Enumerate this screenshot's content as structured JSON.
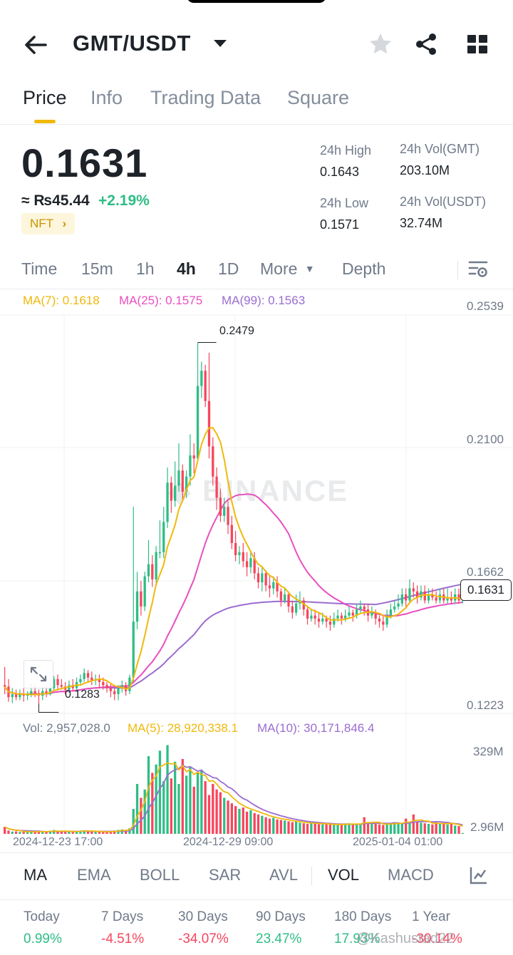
{
  "header": {
    "pair": "GMT/USDT",
    "icons": [
      "back-arrow-icon",
      "caret-down-icon",
      "star-icon",
      "share-icon",
      "grid-icon"
    ]
  },
  "tabs": [
    "Price",
    "Info",
    "Trading Data",
    "Square"
  ],
  "ticker": {
    "last_price": "0.1631",
    "fiat": "≈ ₨45.44",
    "change": "+2.19%",
    "tag": "NFT",
    "high_label": "24h High",
    "high_value": "0.1643",
    "low_label": "24h Low",
    "low_value": "0.1571",
    "vol_base_label": "24h Vol(GMT)",
    "vol_base_value": "203.10M",
    "vol_quote_label": "24h Vol(USDT)",
    "vol_quote_value": "32.74M"
  },
  "intervals": [
    "Time",
    "15m",
    "1h",
    "4h",
    "1D",
    "More",
    "Depth"
  ],
  "active_interval": "4h",
  "colors": {
    "up": "#2ebd85",
    "down": "#f6465d",
    "ma7": "#f0b90b",
    "ma25": "#e84fc1",
    "ma99": "#9b6cd1",
    "accent": "#f0b90b"
  },
  "chart_data": {
    "type": "candlestick",
    "ma_legend": {
      "ma7": "MA(7): 0.1618",
      "ma25": "MA(25): 0.1575",
      "ma99": "MA(99): 0.1563"
    },
    "y_ticks": [
      "0.2539",
      "0.2100",
      "0.1662",
      "0.1223"
    ],
    "ylim": [
      0.1223,
      0.2539
    ],
    "annotations": {
      "high": "0.2479",
      "low": "0.1283"
    },
    "current_price": "0.1631",
    "x_ticks": [
      "2024-12-23 17:00",
      "2024-12-29 09:00",
      "2025-01-04 01:00"
    ],
    "candles": [
      [
        0.1345,
        0.134,
        0.1405,
        0.1315
      ],
      [
        0.134,
        0.1305,
        0.1365,
        0.129
      ],
      [
        0.1305,
        0.1315,
        0.1335,
        0.1285
      ],
      [
        0.1315,
        0.1305,
        0.133,
        0.1295
      ],
      [
        0.1305,
        0.1315,
        0.133,
        0.1295
      ],
      [
        0.1315,
        0.131,
        0.1335,
        0.129
      ],
      [
        0.131,
        0.1315,
        0.1325,
        0.1295
      ],
      [
        0.1315,
        0.1325,
        0.135,
        0.1305
      ],
      [
        0.1325,
        0.1315,
        0.1345,
        0.1305
      ],
      [
        0.1315,
        0.131,
        0.133,
        0.1283
      ],
      [
        0.131,
        0.1325,
        0.134,
        0.1295
      ],
      [
        0.1325,
        0.1315,
        0.134,
        0.1305
      ],
      [
        0.1315,
        0.1335,
        0.135,
        0.131
      ],
      [
        0.1335,
        0.1365,
        0.1375,
        0.1325
      ],
      [
        0.1365,
        0.1345,
        0.138,
        0.133
      ],
      [
        0.1345,
        0.134,
        0.1365,
        0.133
      ],
      [
        0.134,
        0.133,
        0.1355,
        0.1315
      ],
      [
        0.133,
        0.1345,
        0.136,
        0.132
      ],
      [
        0.1345,
        0.1335,
        0.1365,
        0.1325
      ],
      [
        0.1335,
        0.1355,
        0.137,
        0.1325
      ],
      [
        0.1355,
        0.1365,
        0.138,
        0.1345
      ],
      [
        0.1365,
        0.1385,
        0.14,
        0.1355
      ],
      [
        0.1385,
        0.137,
        0.1395,
        0.1355
      ],
      [
        0.137,
        0.136,
        0.139,
        0.1345
      ],
      [
        0.136,
        0.1365,
        0.138,
        0.1345
      ],
      [
        0.1365,
        0.1355,
        0.138,
        0.1335
      ],
      [
        0.1355,
        0.1345,
        0.137,
        0.133
      ],
      [
        0.1345,
        0.1335,
        0.1355,
        0.132
      ],
      [
        0.1335,
        0.1325,
        0.135,
        0.1305
      ],
      [
        0.1325,
        0.1315,
        0.1335,
        0.1295
      ],
      [
        0.1315,
        0.1335,
        0.1345,
        0.1295
      ],
      [
        0.1335,
        0.1345,
        0.136,
        0.132
      ],
      [
        0.1345,
        0.1325,
        0.1355,
        0.131
      ],
      [
        0.1325,
        0.137,
        0.138,
        0.1315
      ],
      [
        0.137,
        0.1555,
        0.1935,
        0.1355
      ],
      [
        0.1555,
        0.1655,
        0.172,
        0.153
      ],
      [
        0.1655,
        0.1605,
        0.169,
        0.1575
      ],
      [
        0.1605,
        0.1705,
        0.172,
        0.159
      ],
      [
        0.1705,
        0.1745,
        0.1825,
        0.1685
      ],
      [
        0.1745,
        0.1695,
        0.1775,
        0.167
      ],
      [
        0.1695,
        0.1785,
        0.1805,
        0.1675
      ],
      [
        0.1785,
        0.1785,
        0.189,
        0.1765
      ],
      [
        0.1785,
        0.1885,
        0.1935,
        0.1765
      ],
      [
        0.1885,
        0.2015,
        0.2065,
        0.1865
      ],
      [
        0.2015,
        0.1955,
        0.2035,
        0.1915
      ],
      [
        0.1955,
        0.2005,
        0.2085,
        0.1935
      ],
      [
        0.2005,
        0.2055,
        0.2145,
        0.1985
      ],
      [
        0.2055,
        0.1985,
        0.2075,
        0.1955
      ],
      [
        0.1985,
        0.2035,
        0.2055,
        0.1965
      ],
      [
        0.2035,
        0.2105,
        0.2175,
        0.2005
      ],
      [
        0.2105,
        0.2095,
        0.2145,
        0.2045
      ],
      [
        0.2095,
        0.2335,
        0.2479,
        0.2085
      ],
      [
        0.2335,
        0.2385,
        0.2415,
        0.2295
      ],
      [
        0.2385,
        0.2285,
        0.2405,
        0.2265
      ],
      [
        0.2285,
        0.2135,
        0.2445,
        0.2095
      ],
      [
        0.2135,
        0.2035,
        0.2165,
        0.2005
      ],
      [
        0.2035,
        0.1965,
        0.2065,
        0.1925
      ],
      [
        0.1965,
        0.1905,
        0.1995,
        0.1885
      ],
      [
        0.1905,
        0.1935,
        0.1965,
        0.1885
      ],
      [
        0.1935,
        0.1875,
        0.1955,
        0.1845
      ],
      [
        0.1875,
        0.1815,
        0.1905,
        0.1795
      ],
      [
        0.1815,
        0.1775,
        0.1855,
        0.1755
      ],
      [
        0.1775,
        0.1785,
        0.1805,
        0.1745
      ],
      [
        0.1785,
        0.1755,
        0.1815,
        0.1735
      ],
      [
        0.1755,
        0.1735,
        0.1785,
        0.1705
      ],
      [
        0.1735,
        0.1765,
        0.1785,
        0.1715
      ],
      [
        0.1765,
        0.1715,
        0.1785,
        0.1695
      ],
      [
        0.1715,
        0.1685,
        0.1735,
        0.1665
      ],
      [
        0.1685,
        0.1715,
        0.1735,
        0.1655
      ],
      [
        0.1715,
        0.1675,
        0.1725,
        0.1655
      ],
      [
        0.1675,
        0.1665,
        0.1705,
        0.1635
      ],
      [
        0.1665,
        0.1685,
        0.1705,
        0.1645
      ],
      [
        0.1685,
        0.1655,
        0.1705,
        0.1635
      ],
      [
        0.1655,
        0.1625,
        0.1665,
        0.1605
      ],
      [
        0.1625,
        0.1645,
        0.1665,
        0.1615
      ],
      [
        0.1645,
        0.1605,
        0.1655,
        0.1585
      ],
      [
        0.1605,
        0.1585,
        0.1625,
        0.1565
      ],
      [
        0.1585,
        0.1615,
        0.1645,
        0.1575
      ],
      [
        0.1615,
        0.1625,
        0.1655,
        0.1595
      ],
      [
        0.1625,
        0.1595,
        0.1635,
        0.1575
      ],
      [
        0.1595,
        0.1565,
        0.1605,
        0.1545
      ],
      [
        0.1565,
        0.1575,
        0.1595,
        0.1555
      ],
      [
        0.1575,
        0.1565,
        0.1595,
        0.1545
      ],
      [
        0.1565,
        0.1555,
        0.1585,
        0.1535
      ],
      [
        0.1555,
        0.1565,
        0.1585,
        0.1545
      ],
      [
        0.1565,
        0.1555,
        0.1575,
        0.1535
      ],
      [
        0.1555,
        0.1545,
        0.1575,
        0.1525
      ],
      [
        0.1545,
        0.1565,
        0.1585,
        0.1535
      ],
      [
        0.1565,
        0.1575,
        0.1595,
        0.1555
      ],
      [
        0.1575,
        0.1565,
        0.1585,
        0.1545
      ],
      [
        0.1565,
        0.1575,
        0.1595,
        0.1555
      ],
      [
        0.1575,
        0.1585,
        0.1605,
        0.1565
      ],
      [
        0.1585,
        0.1575,
        0.1595,
        0.1555
      ],
      [
        0.1575,
        0.1595,
        0.1615,
        0.1565
      ],
      [
        0.1595,
        0.1605,
        0.1625,
        0.1585
      ],
      [
        0.1605,
        0.1595,
        0.1615,
        0.1575
      ],
      [
        0.1595,
        0.1575,
        0.1615,
        0.1555
      ],
      [
        0.1575,
        0.1585,
        0.1605,
        0.1565
      ],
      [
        0.1585,
        0.1565,
        0.1595,
        0.1545
      ],
      [
        0.1565,
        0.1555,
        0.1575,
        0.1535
      ],
      [
        0.1555,
        0.1545,
        0.1575,
        0.1525
      ],
      [
        0.1545,
        0.1575,
        0.1595,
        0.1535
      ],
      [
        0.1575,
        0.1595,
        0.1615,
        0.1565
      ],
      [
        0.1595,
        0.1605,
        0.1625,
        0.1585
      ],
      [
        0.1605,
        0.1615,
        0.1645,
        0.1595
      ],
      [
        0.1615,
        0.1645,
        0.1665,
        0.1605
      ],
      [
        0.1645,
        0.1625,
        0.1665,
        0.1605
      ],
      [
        0.1625,
        0.1665,
        0.1695,
        0.1615
      ],
      [
        0.1665,
        0.1655,
        0.1685,
        0.1635
      ],
      [
        0.1655,
        0.1635,
        0.1675,
        0.1615
      ],
      [
        0.1635,
        0.1655,
        0.1675,
        0.1625
      ],
      [
        0.1655,
        0.1625,
        0.1675,
        0.1615
      ],
      [
        0.1625,
        0.1645,
        0.1665,
        0.1615
      ],
      [
        0.1645,
        0.1635,
        0.1665,
        0.1625
      ],
      [
        0.1635,
        0.1625,
        0.1655,
        0.1615
      ],
      [
        0.1625,
        0.1645,
        0.1665,
        0.1615
      ],
      [
        0.1645,
        0.1625,
        0.1665,
        0.1615
      ],
      [
        0.1625,
        0.1635,
        0.1665,
        0.1615
      ],
      [
        0.1635,
        0.1625,
        0.1655,
        0.1615
      ],
      [
        0.1625,
        0.1645,
        0.1665,
        0.1615
      ],
      [
        0.1645,
        0.1625,
        0.1665,
        0.1615
      ],
      [
        0.1625,
        0.1631,
        0.1655,
        0.1615
      ]
    ],
    "volume": {
      "legend": {
        "vol": "Vol: 2,957,028.0",
        "ma5": "MA(5): 28,920,338.1",
        "ma10": "MA(10): 30,171,846.4"
      },
      "y_ticks": [
        "329M",
        "2.96M"
      ],
      "ylim": [
        0,
        329
      ],
      "values_millions": [
        25,
        12,
        8,
        9,
        7,
        8,
        6,
        9,
        7,
        10,
        8,
        7,
        11,
        14,
        9,
        8,
        7,
        9,
        8,
        10,
        11,
        13,
        9,
        8,
        7,
        8,
        7,
        8,
        9,
        12,
        14,
        16,
        11,
        20,
        90,
        180,
        130,
        160,
        280,
        220,
        250,
        300,
        190,
        320,
        200,
        260,
        180,
        270,
        210,
        240,
        170,
        220,
        230,
        190,
        140,
        180,
        160,
        150,
        130,
        120,
        110,
        100,
        90,
        95,
        80,
        85,
        75,
        70,
        65,
        60,
        55,
        58,
        52,
        50,
        48,
        45,
        42,
        44,
        40,
        38,
        36,
        40,
        38,
        35,
        34,
        36,
        33,
        32,
        34,
        35,
        36,
        38,
        34,
        33,
        35,
        60,
        40,
        38,
        36,
        34,
        32,
        35,
        40,
        42,
        38,
        36,
        55,
        40,
        70,
        45,
        40,
        38,
        36,
        34,
        42,
        38,
        36,
        34,
        40,
        30,
        28,
        3
      ]
    }
  },
  "indicators": [
    "MA",
    "EMA",
    "BOLL",
    "SAR",
    "AVL",
    "VOL",
    "MACD"
  ],
  "active_indicators": [
    "MA",
    "VOL"
  ],
  "performance": [
    {
      "label": "Today",
      "value": "0.99%",
      "dir": "up"
    },
    {
      "label": "7 Days",
      "value": "-4.51%",
      "dir": "down"
    },
    {
      "label": "30 Days",
      "value": "-34.07%",
      "dir": "down"
    },
    {
      "label": "90 Days",
      "value": "23.47%",
      "dir": "up"
    },
    {
      "label": "180 Days",
      "value": "17.93%",
      "dir": "up"
    },
    {
      "label": "1 Year",
      "value": "-30.14%",
      "dir": "down"
    }
  ],
  "watermark": "@Kashustad22"
}
